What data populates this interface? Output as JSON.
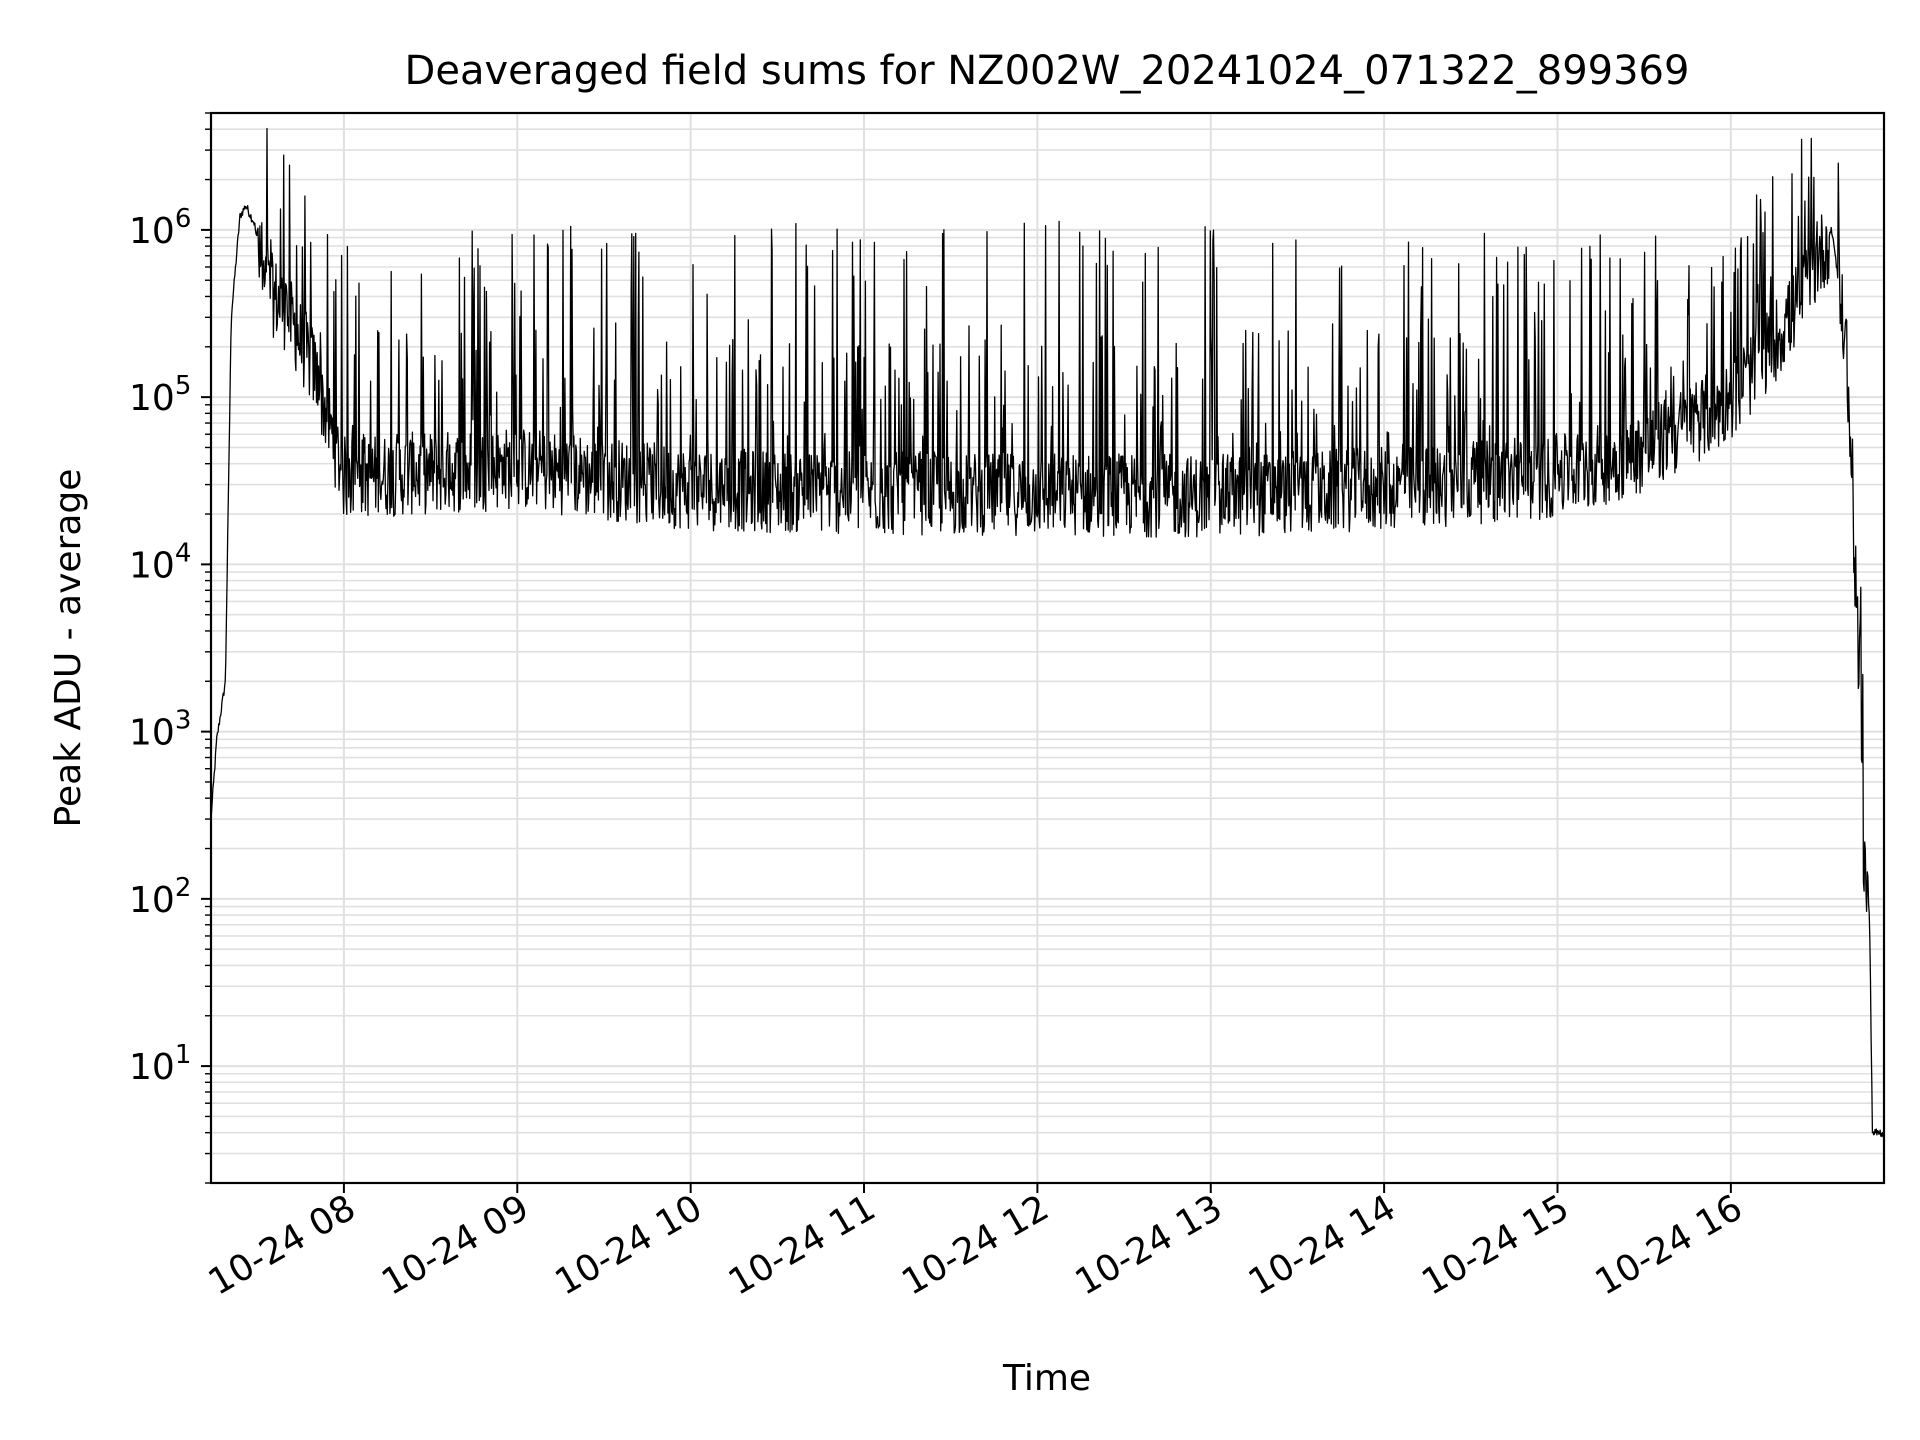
{
  "chart_data": {
    "type": "line",
    "title": "Deaveraged field sums for NZ002W_20241024_071322_899369",
    "xlabel": "Time",
    "ylabel": "Peak ADU - average",
    "yscale": "log",
    "ylim": [
      2,
      5000000
    ],
    "xlim": [
      "2024-10-24 07:14",
      "2024-10-24 16:53"
    ],
    "x_tick_labels": [
      "10-24 08",
      "10-24 09",
      "10-24 10",
      "10-24 11",
      "10-24 12",
      "10-24 13",
      "10-24 14",
      "10-24 15",
      "10-24 16"
    ],
    "y_tick_labels": [
      {
        "base": "10",
        "exp": "1"
      },
      {
        "base": "10",
        "exp": "2"
      },
      {
        "base": "10",
        "exp": "3"
      },
      {
        "base": "10",
        "exp": "4"
      },
      {
        "base": "10",
        "exp": "5"
      },
      {
        "base": "10",
        "exp": "6"
      }
    ],
    "grid": true,
    "line_color": "#000000",
    "grid_color": "#e0e0e0",
    "envelope": [
      {
        "x": "2024-10-24 07:14",
        "base": 300,
        "peak": 300
      },
      {
        "x": "2024-10-24 07:16",
        "base": 900,
        "peak": 900
      },
      {
        "x": "2024-10-24 07:19",
        "base": 2000,
        "peak": 2000
      },
      {
        "x": "2024-10-24 07:21",
        "base": 300000,
        "peak": 300000
      },
      {
        "x": "2024-10-24 07:24",
        "base": 1200000,
        "peak": 1200000
      },
      {
        "x": "2024-10-24 07:26",
        "base": 1400000,
        "peak": 1450000
      },
      {
        "x": "2024-10-24 07:29",
        "base": 1100000,
        "peak": 1300000
      },
      {
        "x": "2024-10-24 07:32",
        "base": 500000,
        "peak": 1300000
      },
      {
        "x": "2024-10-24 07:40",
        "base": 350000,
        "peak": 1600000
      },
      {
        "x": "2024-10-24 07:50",
        "base": 150000,
        "peak": 900000
      },
      {
        "x": "2024-10-24 08:00",
        "base": 35000,
        "peak": 800000
      },
      {
        "x": "2024-10-24 09:00",
        "base": 40000,
        "peak": 1000000
      },
      {
        "x": "2024-10-24 10:00",
        "base": 30000,
        "peak": 1000000
      },
      {
        "x": "2024-10-24 11:00",
        "base": 28000,
        "peak": 1000000
      },
      {
        "x": "2024-10-24 12:00",
        "base": 28000,
        "peak": 1100000
      },
      {
        "x": "2024-10-24 13:00",
        "base": 27000,
        "peak": 1000000
      },
      {
        "x": "2024-10-24 14:00",
        "base": 30000,
        "peak": 1000000
      },
      {
        "x": "2024-10-24 15:00",
        "base": 35000,
        "peak": 900000
      },
      {
        "x": "2024-10-24 15:30",
        "base": 50000,
        "peak": 900000
      },
      {
        "x": "2024-10-24 16:00",
        "base": 100000,
        "peak": 800000
      },
      {
        "x": "2024-10-24 16:20",
        "base": 300000,
        "peak": 900000
      },
      {
        "x": "2024-10-24 16:30",
        "base": 700000,
        "peak": 2600000
      },
      {
        "x": "2024-10-24 16:35",
        "base": 1000000,
        "peak": 1200000
      },
      {
        "x": "2024-10-24 16:40",
        "base": 200000,
        "peak": 400000
      },
      {
        "x": "2024-10-24 16:43",
        "base": 10000,
        "peak": 20000
      },
      {
        "x": "2024-10-24 16:46",
        "base": 200,
        "peak": 600
      },
      {
        "x": "2024-10-24 16:48",
        "base": 80,
        "peak": 100
      },
      {
        "x": "2024-10-24 16:49",
        "base": 4,
        "peak": 4
      },
      {
        "x": "2024-10-24 16:53",
        "base": 4,
        "peak": 4
      }
    ]
  }
}
